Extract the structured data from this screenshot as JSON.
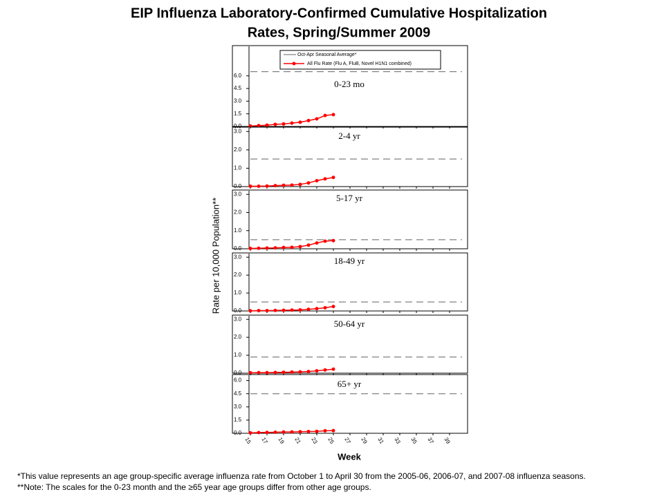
{
  "title": [
    "EIP Influenza Laboratory-Confirmed Cumulative Hospitalization",
    "Rates, Spring/Summer 2009"
  ],
  "y_axis_label": "Rate per 10,000 Population**",
  "x_axis": {
    "label": "Week",
    "xlim": [
      15,
      41
    ],
    "xticks": [
      15,
      17,
      19,
      21,
      23,
      25,
      27,
      29,
      31,
      33,
      35,
      37,
      39
    ],
    "x": [
      15,
      16,
      17,
      18,
      19,
      20,
      21,
      22,
      23,
      24,
      25
    ]
  },
  "legend": {
    "average_name": "Oct-Apr Seasonal Average*",
    "average_color": "#808080",
    "rate_name": "All Flu Rate (Flu A, FluB, Novel H1N1 combined)",
    "rate_color": "#ff0000"
  },
  "chart_data": [
    {
      "type": "line",
      "subtitle": "0-23 mo",
      "ylim": [
        0,
        9.5
      ],
      "yticks": [
        {
          "value": 0,
          "label": "0.0"
        },
        {
          "value": 1.5,
          "label": "1.5"
        },
        {
          "value": 3,
          "label": "3.0"
        },
        {
          "value": 4.5,
          "label": "4.5"
        },
        {
          "value": 6,
          "label": "6.0"
        }
      ],
      "average": 6.5,
      "values": [
        0.05,
        0.1,
        0.15,
        0.25,
        0.3,
        0.4,
        0.5,
        0.7,
        0.9,
        1.3,
        1.4
      ]
    },
    {
      "type": "line",
      "subtitle": "2-4 yr",
      "ylim": [
        0,
        3.2
      ],
      "yticks": [
        {
          "value": 0,
          "label": "0.0"
        },
        {
          "value": 1,
          "label": "1.0"
        },
        {
          "value": 2,
          "label": "2.0"
        },
        {
          "value": 3,
          "label": "3.0"
        }
      ],
      "average": 1.5,
      "values": [
        0.02,
        0.02,
        0.03,
        0.05,
        0.07,
        0.08,
        0.12,
        0.2,
        0.32,
        0.42,
        0.5
      ]
    },
    {
      "type": "line",
      "subtitle": "5-17 yr",
      "ylim": [
        0,
        3.2
      ],
      "yticks": [
        {
          "value": 0,
          "label": "0.0"
        },
        {
          "value": 1,
          "label": "1.0"
        },
        {
          "value": 2,
          "label": "2.0"
        },
        {
          "value": 3,
          "label": "3.0"
        }
      ],
      "average": 0.5,
      "values": [
        0.02,
        0.03,
        0.04,
        0.05,
        0.07,
        0.08,
        0.12,
        0.2,
        0.32,
        0.42,
        0.45
      ]
    },
    {
      "type": "line",
      "subtitle": "18-49 yr",
      "ylim": [
        0,
        3.2
      ],
      "yticks": [
        {
          "value": 0,
          "label": "0.0"
        },
        {
          "value": 1,
          "label": "1.0"
        },
        {
          "value": 2,
          "label": "2.0"
        },
        {
          "value": 3,
          "label": "3.0"
        }
      ],
      "average": 0.5,
      "values": [
        0.01,
        0.02,
        0.02,
        0.03,
        0.04,
        0.05,
        0.06,
        0.09,
        0.13,
        0.18,
        0.25
      ]
    },
    {
      "type": "line",
      "subtitle": "50-64 yr",
      "ylim": [
        0,
        3.2
      ],
      "yticks": [
        {
          "value": 0,
          "label": "0.0"
        },
        {
          "value": 1,
          "label": "1.0"
        },
        {
          "value": 2,
          "label": "2.0"
        },
        {
          "value": 3,
          "label": "3.0"
        }
      ],
      "average": 0.9,
      "values": [
        0.02,
        0.03,
        0.03,
        0.04,
        0.05,
        0.06,
        0.07,
        0.09,
        0.13,
        0.18,
        0.22
      ]
    },
    {
      "type": "line",
      "subtitle": "65+ yr",
      "ylim": [
        0,
        6.6
      ],
      "yticks": [
        {
          "value": 0,
          "label": "0.0"
        },
        {
          "value": 1.5,
          "label": "1.5"
        },
        {
          "value": 3,
          "label": "3.0"
        },
        {
          "value": 4.5,
          "label": "4.5"
        },
        {
          "value": 6,
          "label": "6.0"
        }
      ],
      "average": 4.5,
      "values": [
        0.05,
        0.08,
        0.1,
        0.12,
        0.15,
        0.15,
        0.18,
        0.2,
        0.22,
        0.28,
        0.3
      ]
    }
  ],
  "footnotes": [
    "*This value represents an age group-specific average influenza rate from October 1 to April 30 from the 2005-06, 2006-07, and 2007-08 influenza seasons.",
    "**Note: The scales for the 0-23 month and the ≥65 year age groups differ from other age groups."
  ]
}
